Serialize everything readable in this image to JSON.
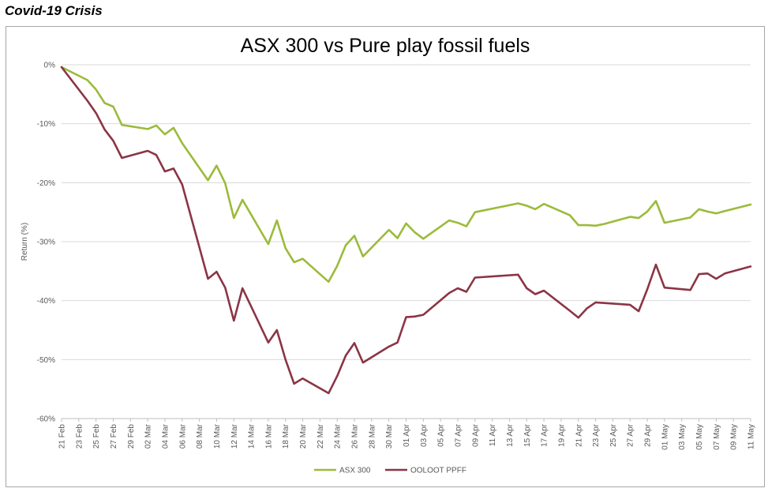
{
  "heading": "Covid-19 Crisis",
  "chart_data": {
    "type": "line",
    "title": "ASX 300 vs Pure play fossil fuels",
    "xlabel": "",
    "ylabel": "Return (%)",
    "ylim": [
      -60,
      0
    ],
    "yticks": [
      0,
      -10,
      -20,
      -30,
      -40,
      -50,
      -60
    ],
    "ytick_labels": [
      "0%",
      "-10%",
      "-20%",
      "-30%",
      "-40%",
      "-50%",
      "-60%"
    ],
    "grid": true,
    "legend_position": "bottom",
    "x_tick_labels": [
      "21 Feb",
      "23 Feb",
      "25 Feb",
      "27 Feb",
      "29 Feb",
      "02 Mar",
      "04 Mar",
      "06 Mar",
      "08 Mar",
      "10 Mar",
      "12 Mar",
      "14 Mar",
      "16 Mar",
      "18 Mar",
      "20 Mar",
      "22 Mar",
      "24 Mar",
      "26 Mar",
      "28 Mar",
      "30 Mar",
      "01 Apr",
      "03 Apr",
      "05 Apr",
      "07 Apr",
      "09 Apr",
      "11 Apr",
      "13 Apr",
      "15 Apr",
      "17 Apr",
      "19 Apr",
      "21 Apr",
      "23 Apr",
      "25 Apr",
      "27 Apr",
      "29 Apr",
      "01 May",
      "03 May",
      "05 May",
      "07 May",
      "09 May",
      "11 May"
    ],
    "x": [
      "21 Feb",
      "24 Feb",
      "25 Feb",
      "26 Feb",
      "27 Feb",
      "28 Feb",
      "02 Mar",
      "03 Mar",
      "04 Mar",
      "05 Mar",
      "06 Mar",
      "09 Mar",
      "10 Mar",
      "11 Mar",
      "12 Mar",
      "13 Mar",
      "16 Mar",
      "17 Mar",
      "18 Mar",
      "19 Mar",
      "20 Mar",
      "23 Mar",
      "24 Mar",
      "25 Mar",
      "26 Mar",
      "27 Mar",
      "30 Mar",
      "31 Mar",
      "01 Apr",
      "02 Apr",
      "03 Apr",
      "06 Apr",
      "07 Apr",
      "08 Apr",
      "09 Apr",
      "14 Apr",
      "15 Apr",
      "16 Apr",
      "17 Apr",
      "20 Apr",
      "21 Apr",
      "22 Apr",
      "23 Apr",
      "24 Apr",
      "27 Apr",
      "28 Apr",
      "29 Apr",
      "30 Apr",
      "01 May",
      "04 May",
      "05 May",
      "06 May",
      "07 May",
      "08 May",
      "11 May"
    ],
    "series": [
      {
        "name": "ASX 300",
        "color": "#9bbb3b",
        "values": [
          -0.4,
          -2.6,
          -4.2,
          -6.5,
          -7.1,
          -10.2,
          -10.9,
          -10.3,
          -11.8,
          -10.7,
          -13.3,
          -19.6,
          -17.1,
          -20.1,
          -26.0,
          -22.9,
          -30.4,
          -26.4,
          -31.1,
          -33.5,
          -32.9,
          -36.8,
          -34.1,
          -30.6,
          -29.0,
          -32.5,
          -28.0,
          -29.4,
          -26.9,
          -28.4,
          -29.5,
          -26.4,
          -26.8,
          -27.4,
          -25.0,
          -23.5,
          -23.9,
          -24.5,
          -23.6,
          -25.5,
          -27.2,
          -27.2,
          -27.3,
          -27.0,
          -25.8,
          -26.0,
          -24.9,
          -23.1,
          -26.8,
          -25.9,
          -24.5,
          -24.9,
          -25.2,
          -24.8,
          -23.7
        ]
      },
      {
        "name": "OOLOOT PPFF",
        "color": "#8b3545",
        "values": [
          -0.4,
          -6.1,
          -8.2,
          -11.0,
          -12.9,
          -15.8,
          -14.6,
          -15.3,
          -18.1,
          -17.6,
          -20.3,
          -36.3,
          -35.1,
          -37.8,
          -43.4,
          -37.9,
          -47.1,
          -45.0,
          -50.0,
          -54.1,
          -53.2,
          -55.7,
          -52.8,
          -49.3,
          -47.2,
          -50.5,
          -47.8,
          -47.1,
          -42.8,
          -42.7,
          -42.4,
          -38.7,
          -37.9,
          -38.5,
          -36.1,
          -35.6,
          -37.9,
          -38.9,
          -38.3,
          -41.7,
          -42.9,
          -41.3,
          -40.3,
          -40.4,
          -40.7,
          -41.8,
          -38.1,
          -33.9,
          -37.8,
          -38.2,
          -35.5,
          -35.4,
          -36.3,
          -35.4,
          -34.2
        ]
      }
    ]
  }
}
